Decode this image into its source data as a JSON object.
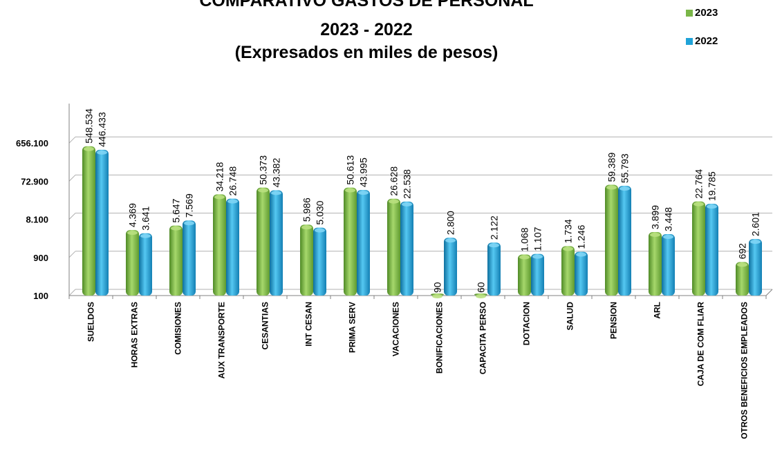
{
  "chart_data": {
    "type": "bar",
    "title_lines": [
      "COMPARATIVO GASTOS DE PERSONAL",
      "2023 - 2022",
      "(Expresados en miles de pesos)"
    ],
    "categories": [
      "SUELDOS",
      "HORAS EXTRAS",
      "COMISIONES",
      "AUX TRANSPORTE",
      "CESANTIAS",
      "INT CESAN",
      "PRIMA SERV",
      "VACACIONES",
      "BONIFICACIONES",
      "CAPACITA PERSO",
      "DOTACION",
      "SALUD",
      "PENSION",
      "ARL",
      "CAJA DE COM FLIAR",
      "OTROS BENEFICIOS EMPLEADOS"
    ],
    "series": [
      {
        "name": "2023",
        "color": "#7ab648",
        "values": [
          548534,
          4369,
          5647,
          34218,
          50373,
          5986,
          50613,
          26628,
          90,
          60,
          1068,
          1734,
          59389,
          3899,
          22764,
          692
        ],
        "labels": [
          "548.534",
          "4.369",
          "5.647",
          "34.218",
          "50.373",
          "5.986",
          "50.613",
          "26.628",
          "90",
          "60",
          "1.068",
          "1.734",
          "59.389",
          "3.899",
          "22.764",
          "692"
        ]
      },
      {
        "name": "2022",
        "color": "#1fa3d8",
        "values": [
          446433,
          3641,
          7569,
          26748,
          43382,
          5030,
          43995,
          22538,
          2800,
          2122,
          1107,
          1246,
          55793,
          3448,
          19785,
          2601
        ],
        "labels": [
          "446.433",
          "3.641",
          "7.569",
          "26.748",
          "43.382",
          "5.030",
          "43.995",
          "22.538",
          "2.800",
          "2.122",
          "1.107",
          "1.246",
          "55.793",
          "3.448",
          "19.785",
          "2.601"
        ]
      }
    ],
    "y_scale": "log",
    "y_ticks": [
      100,
      900,
      8100,
      72900,
      656100
    ],
    "y_tick_labels": [
      "100",
      "900",
      "8.100",
      "72.900",
      "656.100"
    ],
    "ylim": [
      100,
      5904900
    ],
    "grid": true,
    "legend_position": "top-right"
  }
}
